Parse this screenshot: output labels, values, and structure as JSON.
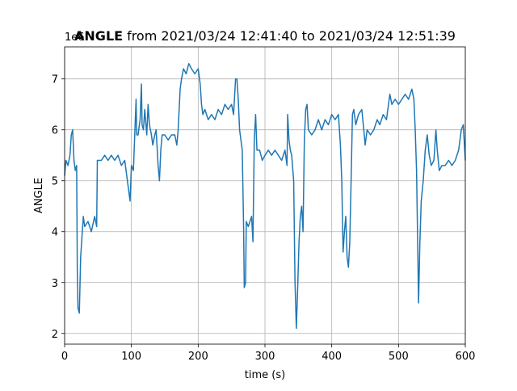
{
  "chart_data": {
    "type": "line",
    "title_bold": "ANGLE",
    "title": "from 2021/03/24 12:41:40 to 2021/03/24 12:51:39",
    "x_label": "time (s)",
    "y_label": "ANGLE",
    "y_offset_text": "1e6",
    "xlim": [
      0,
      600
    ],
    "ylim": [
      1.79,
      7.63
    ],
    "xticks": [
      0,
      100,
      200,
      300,
      400,
      500,
      600
    ],
    "yticks": [
      2,
      3,
      4,
      5,
      6,
      7
    ],
    "grid": true,
    "x": [
      0,
      2,
      5,
      8,
      10,
      12,
      14,
      16,
      18,
      19,
      20,
      22,
      24,
      26,
      28,
      30,
      35,
      40,
      45,
      48,
      49,
      55,
      60,
      65,
      70,
      75,
      80,
      85,
      90,
      95,
      98,
      100,
      103,
      105,
      107,
      108,
      110,
      113,
      115,
      116,
      118,
      120,
      123,
      125,
      127,
      130,
      132,
      135,
      137,
      140,
      142,
      144,
      146,
      150,
      155,
      160,
      165,
      168,
      170,
      173,
      175,
      178,
      182,
      186,
      190,
      195,
      200,
      203,
      205,
      207,
      210,
      215,
      220,
      225,
      230,
      235,
      240,
      245,
      250,
      253,
      256,
      258,
      260,
      262,
      264,
      266,
      268,
      269,
      271,
      272,
      275,
      280,
      282,
      284,
      286,
      288,
      292,
      296,
      300,
      305,
      310,
      315,
      320,
      325,
      330,
      333,
      334,
      336,
      338,
      340,
      343,
      345,
      347,
      349,
      351,
      353,
      355,
      357,
      359,
      361,
      363,
      365,
      370,
      375,
      380,
      385,
      390,
      395,
      400,
      405,
      410,
      413,
      415,
      417,
      419,
      421,
      423,
      425,
      427,
      429,
      431,
      433,
      436,
      440,
      445,
      448,
      450,
      453,
      458,
      463,
      468,
      472,
      477,
      482,
      487,
      490,
      495,
      500,
      505,
      510,
      515,
      520,
      523,
      525,
      527,
      529,
      530,
      532,
      534,
      537,
      540,
      543,
      546,
      549,
      553,
      556,
      558,
      561,
      565,
      570,
      575,
      580,
      585,
      590,
      594,
      597,
      600
    ],
    "series": [
      {
        "name": "ANGLE",
        "color": "#1f77b4",
        "values": [
          5.1,
          5.4,
          5.3,
          5.5,
          5.9,
          6.0,
          5.4,
          5.2,
          5.3,
          3.2,
          2.5,
          2.4,
          3.5,
          3.9,
          4.3,
          4.1,
          4.2,
          4.0,
          4.3,
          4.1,
          5.4,
          5.4,
          5.5,
          5.4,
          5.5,
          5.4,
          5.5,
          5.3,
          5.4,
          4.9,
          4.6,
          5.3,
          5.2,
          5.9,
          6.6,
          5.9,
          5.9,
          6.2,
          6.9,
          6.1,
          6.0,
          6.4,
          5.9,
          6.5,
          6.1,
          5.9,
          5.7,
          5.9,
          6.0,
          5.3,
          5.0,
          5.6,
          5.9,
          5.9,
          5.8,
          5.9,
          5.9,
          5.7,
          6.0,
          6.8,
          7.0,
          7.2,
          7.1,
          7.3,
          7.2,
          7.1,
          7.2,
          6.9,
          6.5,
          6.3,
          6.4,
          6.2,
          6.3,
          6.2,
          6.4,
          6.3,
          6.5,
          6.4,
          6.5,
          6.3,
          7.0,
          7.0,
          6.6,
          6.0,
          5.8,
          5.6,
          4.1,
          2.9,
          3.0,
          4.2,
          4.1,
          4.3,
          3.8,
          5.8,
          6.3,
          5.6,
          5.6,
          5.4,
          5.5,
          5.6,
          5.5,
          5.6,
          5.5,
          5.4,
          5.6,
          5.3,
          6.3,
          5.8,
          5.6,
          5.5,
          5.0,
          3.0,
          2.1,
          2.9,
          3.8,
          4.3,
          4.5,
          4.0,
          5.8,
          6.4,
          6.5,
          6.0,
          5.9,
          6.0,
          6.2,
          6.0,
          6.2,
          6.1,
          6.3,
          6.2,
          6.3,
          5.7,
          5.0,
          3.6,
          4.0,
          4.3,
          3.5,
          3.3,
          3.8,
          5.0,
          6.3,
          6.4,
          6.1,
          6.3,
          6.4,
          6.0,
          5.7,
          6.0,
          5.9,
          6.0,
          6.2,
          6.1,
          6.3,
          6.2,
          6.7,
          6.5,
          6.6,
          6.5,
          6.6,
          6.7,
          6.6,
          6.8,
          6.6,
          6.0,
          5.2,
          3.5,
          2.6,
          3.8,
          4.6,
          5.0,
          5.6,
          5.9,
          5.5,
          5.3,
          5.4,
          6.0,
          5.6,
          5.2,
          5.3,
          5.3,
          5.4,
          5.3,
          5.4,
          5.6,
          6.0,
          6.1,
          5.4
        ]
      }
    ]
  }
}
